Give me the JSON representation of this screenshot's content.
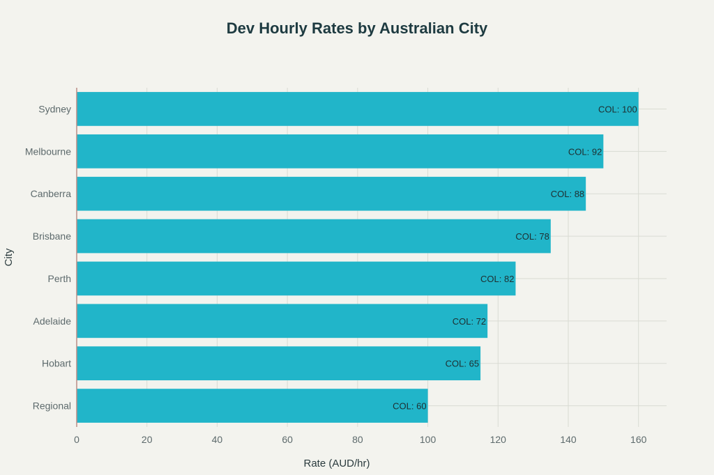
{
  "chart_data": {
    "type": "bar",
    "orientation": "horizontal",
    "title": "Dev Hourly Rates by Australian City",
    "xlabel": "Rate (AUD/hr)",
    "ylabel": "City",
    "xlim": [
      0,
      168
    ],
    "xticks": [
      0,
      20,
      40,
      60,
      80,
      100,
      120,
      140,
      160
    ],
    "categories": [
      "Sydney",
      "Melbourne",
      "Canberra",
      "Brisbane",
      "Perth",
      "Adelaide",
      "Hobart",
      "Regional"
    ],
    "values": [
      160,
      150,
      145,
      135,
      125,
      117,
      115,
      100
    ],
    "data_labels": [
      "COL: 100",
      "COL: 92",
      "COL: 88",
      "COL: 78",
      "COL: 82",
      "COL: 72",
      "COL: 65",
      "COL: 60"
    ],
    "bar_color": "#21b5c9",
    "grid": true,
    "legend": "none"
  }
}
